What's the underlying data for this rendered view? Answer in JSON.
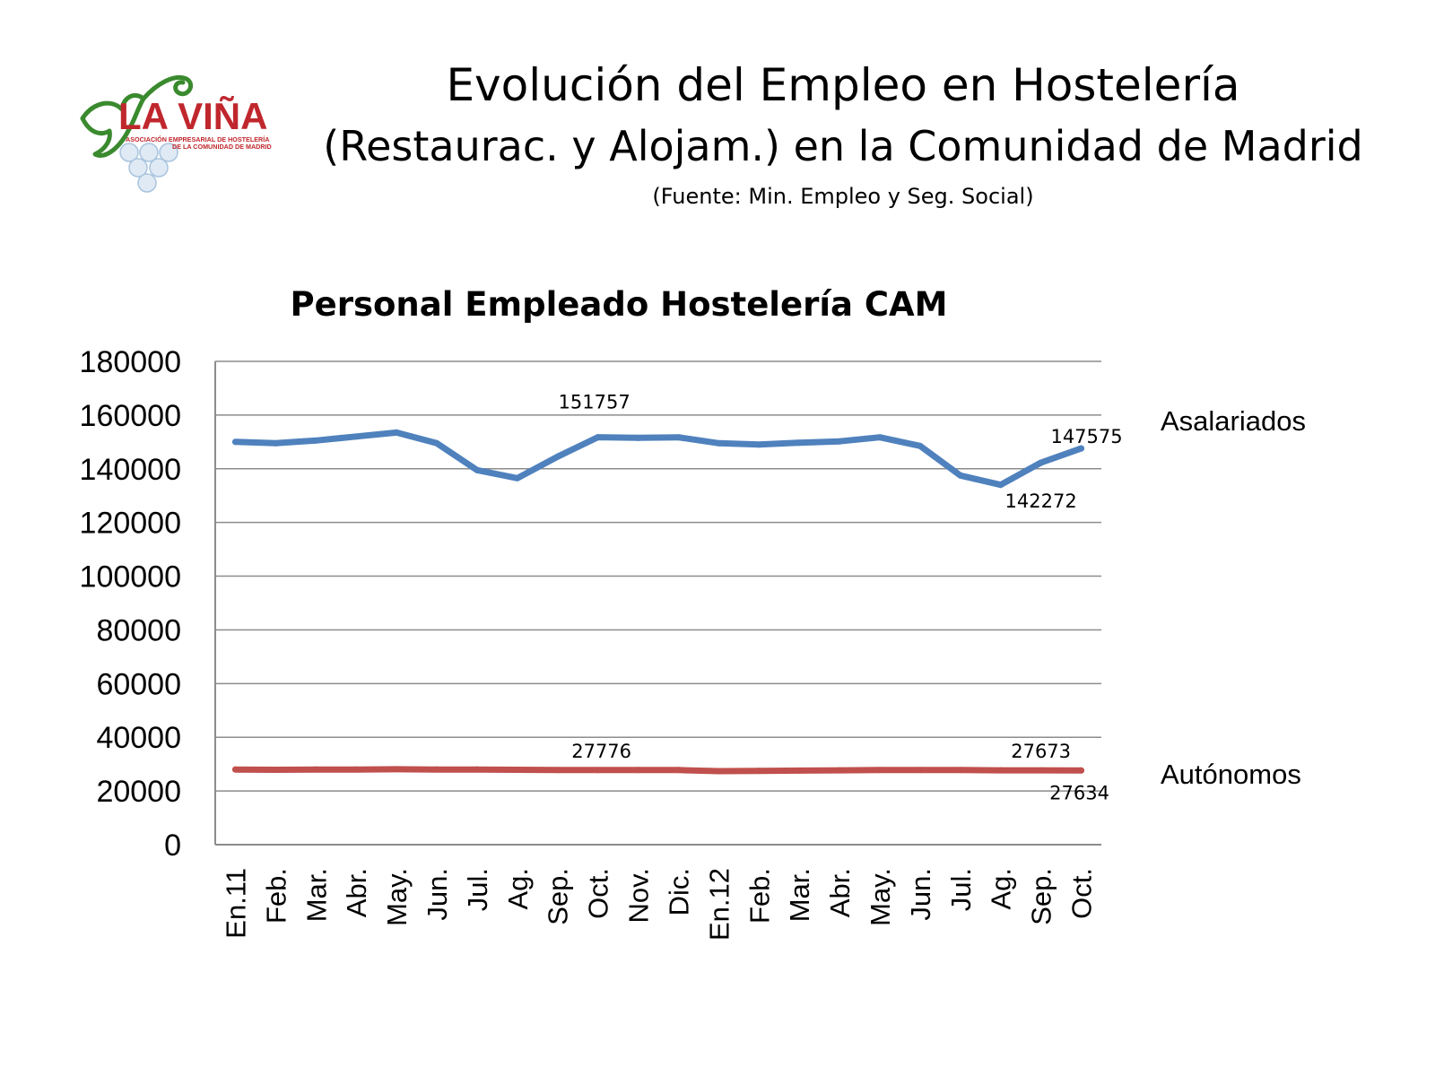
{
  "page": {
    "title_line1": "Evolución del Empleo en Hostelería",
    "title_line2": "(Restaurac. y Alojam.) en la Comunidad de Madrid",
    "source": "(Fuente: Min. Empleo y Seg. Social)"
  },
  "logo": {
    "name": "LA VIÑA",
    "subtitle_line1": "ASOCIACIÓN EMPRESARIAL DE HOSTELERÍA",
    "subtitle_line2": "DE LA COMUNIDAD DE MADRID",
    "colors": {
      "red": "#c0272d",
      "green": "#3a8a2e",
      "grape": "#cfe0f0"
    }
  },
  "chart_data": {
    "type": "line",
    "title": "Personal Empleado Hostelería CAM",
    "categories": [
      "En.11",
      "Feb.",
      "Mar.",
      "Abr.",
      "May.",
      "Jun.",
      "Jul.",
      "Ag.",
      "Sep.",
      "Oct.",
      "Nov.",
      "Dic.",
      "En.12",
      "Feb.",
      "Mar.",
      "Abr.",
      "May.",
      "Jun.",
      "Jul.",
      "Ag.",
      "Sep.",
      "Oct."
    ],
    "ylim": [
      0,
      180000
    ],
    "yticks": [
      0,
      20000,
      40000,
      60000,
      80000,
      100000,
      120000,
      140000,
      160000,
      180000
    ],
    "grid": true,
    "legend": "right",
    "series": [
      {
        "name": "Asalariados",
        "color": "#4f81bd",
        "values": [
          150000,
          149500,
          150500,
          152000,
          153500,
          149500,
          139500,
          136500,
          144500,
          151757,
          151500,
          151700,
          149500,
          149000,
          149700,
          150200,
          151700,
          148500,
          137500,
          134000,
          142272,
          147575
        ],
        "data_labels": [
          {
            "index": 9,
            "text": "151757"
          },
          {
            "index": 20,
            "text": "142272"
          },
          {
            "index": 21,
            "text": "147575"
          }
        ]
      },
      {
        "name": "Autónomos",
        "color": "#c0504d",
        "values": [
          28000,
          27900,
          28000,
          28000,
          28100,
          28000,
          28000,
          27900,
          27800,
          27776,
          27800,
          27800,
          27400,
          27500,
          27600,
          27700,
          27800,
          27800,
          27800,
          27700,
          27673,
          27634
        ],
        "data_labels": [
          {
            "index": 9,
            "text": "27776"
          },
          {
            "index": 20,
            "text": "27673"
          },
          {
            "index": 21,
            "text": "27634"
          }
        ]
      }
    ]
  }
}
